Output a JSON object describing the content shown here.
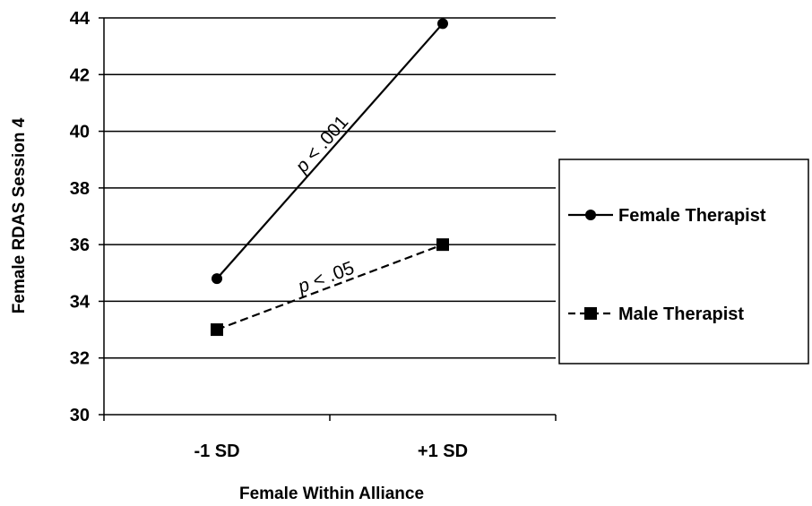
{
  "chart_data": {
    "type": "line",
    "xlabel": "Female Within Alliance",
    "ylabel": "Female RDAS Session 4",
    "categories": [
      "-1 SD",
      "+1 SD"
    ],
    "ylim": [
      30,
      44
    ],
    "yticks": [
      30,
      32,
      34,
      36,
      38,
      40,
      42,
      44
    ],
    "grid": true,
    "legend_position": "right",
    "series": [
      {
        "name": "Female Therapist",
        "values": [
          34.8,
          43.8
        ],
        "marker": "circle",
        "line_style": "solid",
        "color": "#000000"
      },
      {
        "name": "Male Therapist",
        "values": [
          33.0,
          36.0
        ],
        "marker": "square",
        "line_style": "dashed",
        "color": "#000000"
      }
    ],
    "annotations": [
      {
        "text": "p < .001",
        "series": "Female Therapist"
      },
      {
        "text": "p < .05",
        "series": "Male Therapist"
      }
    ]
  }
}
